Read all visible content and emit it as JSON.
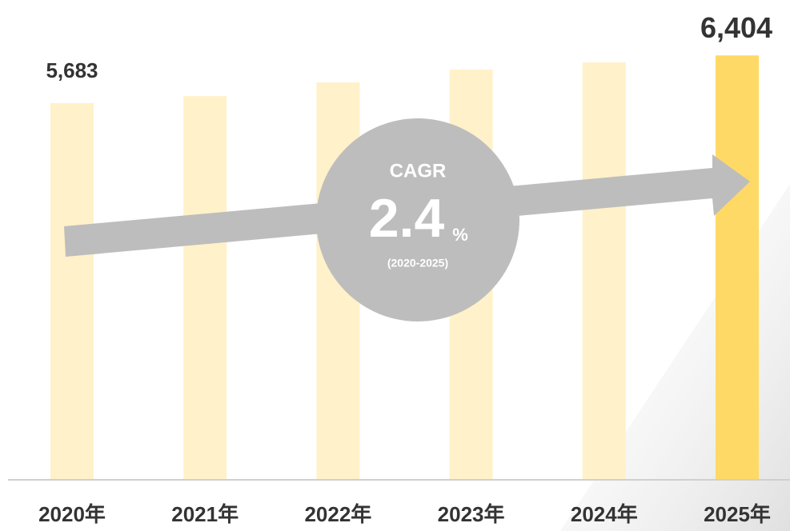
{
  "chart_data": {
    "type": "bar",
    "categories": [
      "2020年",
      "2021年",
      "2022年",
      "2023年",
      "2024年",
      "2025年"
    ],
    "values": [
      5683,
      5790,
      5996,
      6190,
      6298,
      6404
    ],
    "value_labels": [
      "5,683",
      null,
      null,
      null,
      null,
      "6,404"
    ],
    "colors": [
      "#fff1c9",
      "#fff1c9",
      "#fff1c9",
      "#fff1c9",
      "#fff1c9",
      "#ffd966"
    ],
    "ylim": [
      0,
      7240
    ],
    "cagr": {
      "label": "CAGR",
      "value": 2.4,
      "unit": "%",
      "period": "(2020-2025)"
    }
  }
}
